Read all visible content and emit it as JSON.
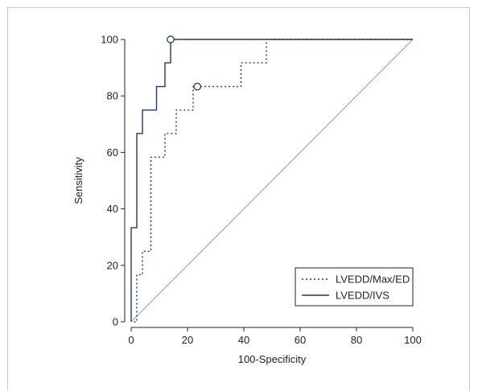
{
  "colors": {
    "series_line": "#1f3a5f",
    "text": "#222222",
    "diagonal": "#9a9a9a",
    "panel_border": "#c8c8c8"
  },
  "chart_data": {
    "type": "line",
    "title": "",
    "xlabel": "100-Specificity",
    "ylabel": "Sensitivity",
    "xlim": [
      0,
      100
    ],
    "ylim": [
      0,
      100
    ],
    "xticks": [
      "0",
      "20",
      "40",
      "60",
      "80",
      "100"
    ],
    "yticks": [
      "0",
      "20",
      "40",
      "60",
      "80",
      "100"
    ],
    "grid": false,
    "legend_position": "bottom-right",
    "reference_line": {
      "x": [
        0,
        100
      ],
      "y": [
        0,
        100
      ]
    },
    "series": [
      {
        "name": "LVEDD/Max/ED",
        "style": "dotted",
        "x": [
          1,
          2,
          2,
          4,
          4,
          7,
          7,
          12,
          12,
          16,
          16,
          22,
          22,
          23.5,
          23.5,
          39,
          39,
          48,
          48,
          100
        ],
        "y": [
          0,
          0,
          16.7,
          16.7,
          25,
          25,
          58.3,
          58.3,
          66.7,
          66.7,
          75,
          75,
          83.3,
          83.3,
          83.3,
          83.3,
          91.7,
          91.7,
          100,
          100
        ],
        "cutoff": {
          "x": 23.5,
          "y": 83.3
        }
      },
      {
        "name": "LVEDD/IVS",
        "style": "solid",
        "x": [
          0,
          0,
          2,
          2,
          4,
          4,
          9,
          9,
          12,
          12,
          14,
          14,
          100
        ],
        "y": [
          0,
          33.3,
          33.3,
          66.7,
          66.7,
          75,
          75,
          83.3,
          83.3,
          91.7,
          91.7,
          100,
          100
        ],
        "cutoff": {
          "x": 14,
          "y": 100
        }
      }
    ]
  }
}
